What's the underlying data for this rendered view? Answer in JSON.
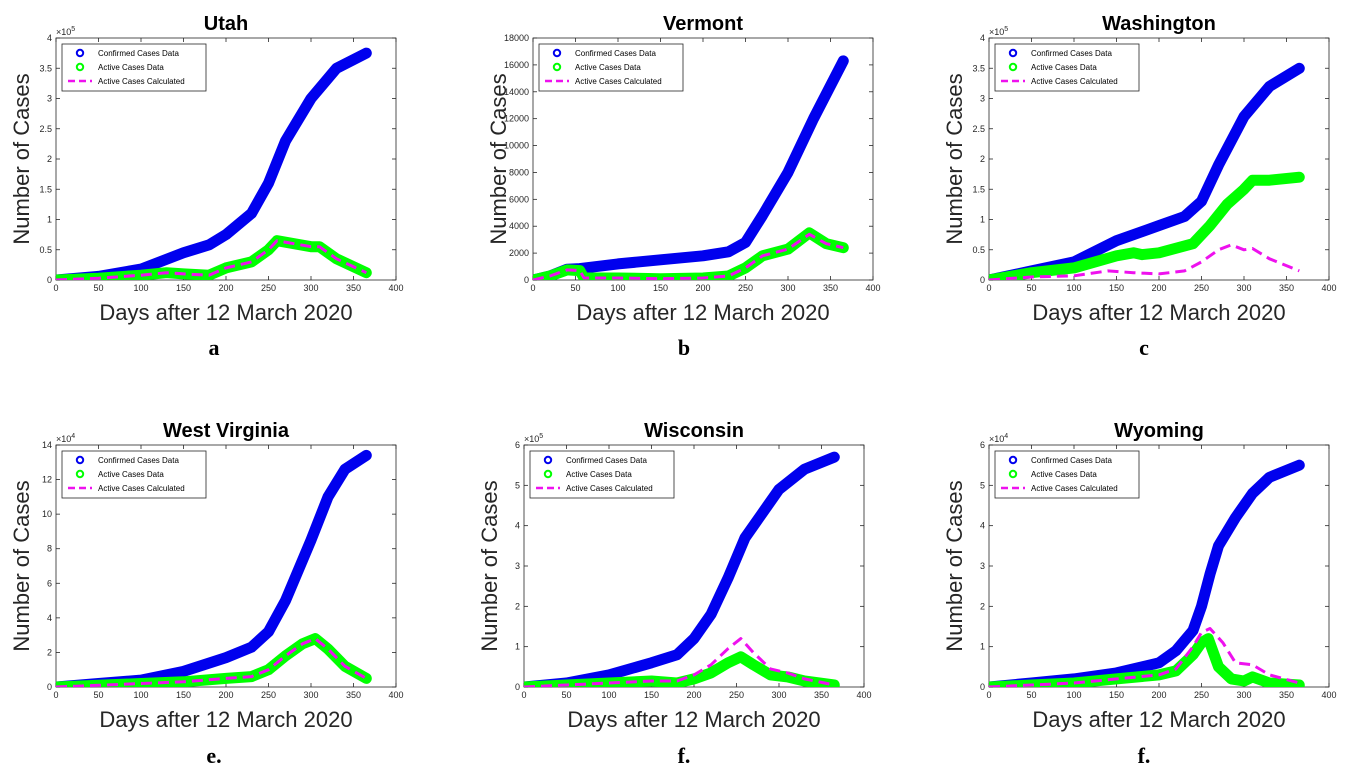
{
  "colors": {
    "confirmed": "#0000ee",
    "active_data": "#00ff00",
    "active_calc": "#ee11ee"
  },
  "legend_labels": [
    "Confirmed Cases Data",
    "Active Cases Data",
    "Active Cases Calculated"
  ],
  "captions": [
    "a",
    "b",
    "c",
    "e.",
    "f.",
    "f."
  ],
  "chart_data": [
    {
      "type": "line",
      "title": "Utah",
      "xlabel": "Days after 12 March 2020",
      "ylabel": "Number of Cases",
      "xlim": [
        0,
        400
      ],
      "xticks": [
        0,
        50,
        100,
        150,
        200,
        250,
        300,
        350,
        400
      ],
      "ylim": [
        0,
        4
      ],
      "yticks": [
        0,
        0.5,
        1,
        1.5,
        2,
        2.5,
        3,
        3.5,
        4
      ],
      "exponent": "×10^5",
      "legend": "top-left",
      "series": [
        {
          "name": "Confirmed Cases Data",
          "style": "marker",
          "x": [
            0,
            50,
            100,
            150,
            180,
            200,
            230,
            250,
            270,
            300,
            330,
            365
          ],
          "y": [
            0,
            0.06,
            0.18,
            0.45,
            0.58,
            0.75,
            1.1,
            1.6,
            2.3,
            3.0,
            3.5,
            3.75
          ]
        },
        {
          "name": "Active Cases Data",
          "style": "marker",
          "x": [
            0,
            50,
            100,
            130,
            150,
            180,
            200,
            230,
            250,
            260,
            280,
            300,
            310,
            330,
            365
          ],
          "y": [
            0,
            0.03,
            0.08,
            0.12,
            0.1,
            0.08,
            0.2,
            0.3,
            0.5,
            0.65,
            0.6,
            0.55,
            0.55,
            0.35,
            0.12
          ]
        },
        {
          "name": "Active Cases Calculated",
          "style": "dash",
          "x": [
            0,
            50,
            100,
            130,
            150,
            180,
            200,
            230,
            250,
            260,
            280,
            300,
            310,
            330,
            365
          ],
          "y": [
            0,
            0.03,
            0.08,
            0.12,
            0.1,
            0.08,
            0.2,
            0.3,
            0.5,
            0.65,
            0.6,
            0.55,
            0.55,
            0.35,
            0.12
          ]
        }
      ]
    },
    {
      "type": "line",
      "title": "Vermont",
      "xlabel": "Days after 12 March 2020",
      "ylabel": "Number of Cases",
      "xlim": [
        0,
        400
      ],
      "xticks": [
        0,
        50,
        100,
        150,
        200,
        250,
        300,
        350,
        400
      ],
      "ylim": [
        0,
        18000
      ],
      "yticks": [
        0,
        2000,
        4000,
        6000,
        8000,
        10000,
        12000,
        14000,
        16000,
        18000
      ],
      "exponent": "",
      "legend": "top-left",
      "series": [
        {
          "name": "Confirmed Cases Data",
          "style": "marker",
          "x": [
            0,
            20,
            40,
            55,
            100,
            150,
            200,
            230,
            250,
            270,
            300,
            330,
            365
          ],
          "y": [
            0,
            300,
            800,
            850,
            1200,
            1500,
            1800,
            2100,
            2800,
            4800,
            8000,
            12000,
            16300
          ]
        },
        {
          "name": "Active Cases Data",
          "style": "marker",
          "x": [
            0,
            20,
            40,
            55,
            60,
            100,
            150,
            200,
            230,
            250,
            270,
            300,
            325,
            345,
            365
          ],
          "y": [
            0,
            300,
            750,
            700,
            150,
            150,
            100,
            150,
            300,
            900,
            1800,
            2300,
            3500,
            2700,
            2400
          ]
        },
        {
          "name": "Active Cases Calculated",
          "style": "dash",
          "x": [
            0,
            20,
            40,
            55,
            60,
            100,
            150,
            200,
            230,
            250,
            270,
            300,
            325,
            345,
            365
          ],
          "y": [
            0,
            300,
            750,
            700,
            150,
            150,
            100,
            150,
            300,
            900,
            1800,
            2300,
            3400,
            2700,
            2400
          ]
        }
      ]
    },
    {
      "type": "line",
      "title": "Washington",
      "xlabel": "Days after 12 March 2020",
      "ylabel": "Number of Cases",
      "xlim": [
        0,
        400
      ],
      "xticks": [
        0,
        50,
        100,
        150,
        200,
        250,
        300,
        350,
        400
      ],
      "ylim": [
        0,
        4
      ],
      "yticks": [
        0,
        0.5,
        1,
        1.5,
        2,
        2.5,
        3,
        3.5,
        4
      ],
      "exponent": "×10^5",
      "legend": "top-left",
      "series": [
        {
          "name": "Confirmed Cases Data",
          "style": "marker",
          "x": [
            0,
            50,
            100,
            150,
            200,
            230,
            250,
            270,
            300,
            330,
            365
          ],
          "y": [
            0,
            0.15,
            0.3,
            0.65,
            0.9,
            1.05,
            1.3,
            1.9,
            2.7,
            3.2,
            3.5
          ]
        },
        {
          "name": "Active Cases Data",
          "style": "marker",
          "x": [
            0,
            50,
            100,
            150,
            170,
            180,
            200,
            240,
            260,
            280,
            300,
            310,
            330,
            365
          ],
          "y": [
            0,
            0.12,
            0.2,
            0.4,
            0.45,
            0.42,
            0.45,
            0.6,
            0.9,
            1.25,
            1.5,
            1.65,
            1.65,
            1.7
          ]
        },
        {
          "name": "Active Cases Calculated",
          "style": "dash",
          "x": [
            0,
            50,
            100,
            140,
            170,
            200,
            230,
            250,
            270,
            285,
            300,
            310,
            330,
            365
          ],
          "y": [
            0,
            0.05,
            0.07,
            0.15,
            0.12,
            0.1,
            0.15,
            0.3,
            0.5,
            0.58,
            0.5,
            0.52,
            0.35,
            0.15
          ]
        }
      ]
    },
    {
      "type": "line",
      "title": "West Virginia",
      "xlabel": "Days after 12 March 2020",
      "ylabel": "Number of Cases",
      "xlim": [
        0,
        400
      ],
      "xticks": [
        0,
        50,
        100,
        150,
        200,
        250,
        300,
        350,
        400
      ],
      "ylim": [
        0,
        14
      ],
      "yticks": [
        0,
        2,
        4,
        6,
        8,
        10,
        12,
        14
      ],
      "exponent": "×10^4",
      "legend": "top-left",
      "series": [
        {
          "name": "Confirmed Cases Data",
          "style": "marker",
          "x": [
            0,
            50,
            100,
            150,
            200,
            230,
            250,
            270,
            300,
            320,
            340,
            365
          ],
          "y": [
            0,
            0.2,
            0.4,
            0.9,
            1.7,
            2.3,
            3.2,
            5.0,
            8.5,
            11.0,
            12.6,
            13.4
          ]
        },
        {
          "name": "Active Cases Data",
          "style": "marker",
          "x": [
            0,
            50,
            100,
            150,
            200,
            230,
            250,
            270,
            290,
            305,
            320,
            340,
            365
          ],
          "y": [
            0,
            0.1,
            0.2,
            0.3,
            0.5,
            0.6,
            1.0,
            1.8,
            2.5,
            2.8,
            2.2,
            1.2,
            0.5
          ]
        },
        {
          "name": "Active Cases Calculated",
          "style": "dash",
          "x": [
            0,
            50,
            100,
            150,
            200,
            230,
            250,
            270,
            290,
            305,
            320,
            340,
            365
          ],
          "y": [
            0,
            0.1,
            0.2,
            0.3,
            0.5,
            0.6,
            1.0,
            1.8,
            2.5,
            2.8,
            2.2,
            1.2,
            0.5
          ]
        }
      ]
    },
    {
      "type": "line",
      "title": "Wisconsin",
      "xlabel": "Days after 12 March 2020",
      "ylabel": "Number of Cases",
      "xlim": [
        0,
        400
      ],
      "xticks": [
        0,
        50,
        100,
        150,
        200,
        250,
        300,
        350,
        400
      ],
      "ylim": [
        0,
        6
      ],
      "yticks": [
        0,
        1,
        2,
        3,
        4,
        5,
        6
      ],
      "exponent": "×10^5",
      "legend": "top-left",
      "series": [
        {
          "name": "Confirmed Cases Data",
          "style": "marker",
          "x": [
            0,
            50,
            100,
            150,
            180,
            200,
            220,
            240,
            260,
            280,
            300,
            330,
            365
          ],
          "y": [
            0,
            0.1,
            0.3,
            0.6,
            0.8,
            1.2,
            1.8,
            2.7,
            3.7,
            4.3,
            4.9,
            5.4,
            5.7
          ]
        },
        {
          "name": "Active Cases Data",
          "style": "marker",
          "x": [
            0,
            50,
            100,
            150,
            180,
            200,
            220,
            240,
            255,
            270,
            290,
            310,
            330,
            365
          ],
          "y": [
            0,
            0.05,
            0.1,
            0.15,
            0.1,
            0.2,
            0.35,
            0.6,
            0.75,
            0.55,
            0.3,
            0.25,
            0.15,
            0.05
          ]
        },
        {
          "name": "Active Cases Calculated",
          "style": "dash",
          "x": [
            0,
            50,
            100,
            150,
            180,
            200,
            220,
            240,
            255,
            270,
            290,
            310,
            330,
            365
          ],
          "y": [
            0,
            0.05,
            0.1,
            0.15,
            0.15,
            0.3,
            0.55,
            0.95,
            1.2,
            0.85,
            0.45,
            0.35,
            0.2,
            0.05
          ]
        }
      ]
    },
    {
      "type": "line",
      "title": "Wyoming",
      "xlabel": "Days after 12 March 2020",
      "ylabel": "Number of Cases",
      "xlim": [
        0,
        400
      ],
      "xticks": [
        0,
        50,
        100,
        150,
        200,
        250,
        300,
        350,
        400
      ],
      "ylim": [
        0,
        6
      ],
      "yticks": [
        0,
        1,
        2,
        3,
        4,
        5,
        6
      ],
      "exponent": "×10^4",
      "legend": "top-left",
      "series": [
        {
          "name": "Confirmed Cases Data",
          "style": "marker",
          "x": [
            0,
            50,
            100,
            150,
            200,
            220,
            240,
            250,
            260,
            270,
            290,
            310,
            330,
            365
          ],
          "y": [
            0,
            0.1,
            0.2,
            0.35,
            0.6,
            0.9,
            1.4,
            2.0,
            2.8,
            3.5,
            4.2,
            4.8,
            5.2,
            5.5
          ]
        },
        {
          "name": "Active Cases Data",
          "style": "marker",
          "x": [
            0,
            50,
            100,
            150,
            200,
            220,
            240,
            250,
            258,
            270,
            285,
            300,
            310,
            330,
            365
          ],
          "y": [
            0,
            0.05,
            0.1,
            0.2,
            0.3,
            0.4,
            0.8,
            1.1,
            1.2,
            0.5,
            0.2,
            0.15,
            0.25,
            0.1,
            0.05
          ]
        },
        {
          "name": "Active Cases Calculated",
          "style": "dash",
          "x": [
            0,
            50,
            100,
            150,
            200,
            220,
            240,
            250,
            260,
            275,
            290,
            310,
            330,
            365
          ],
          "y": [
            0,
            0.05,
            0.1,
            0.2,
            0.3,
            0.45,
            1.0,
            1.35,
            1.45,
            1.1,
            0.6,
            0.55,
            0.3,
            0.1
          ]
        }
      ]
    }
  ]
}
